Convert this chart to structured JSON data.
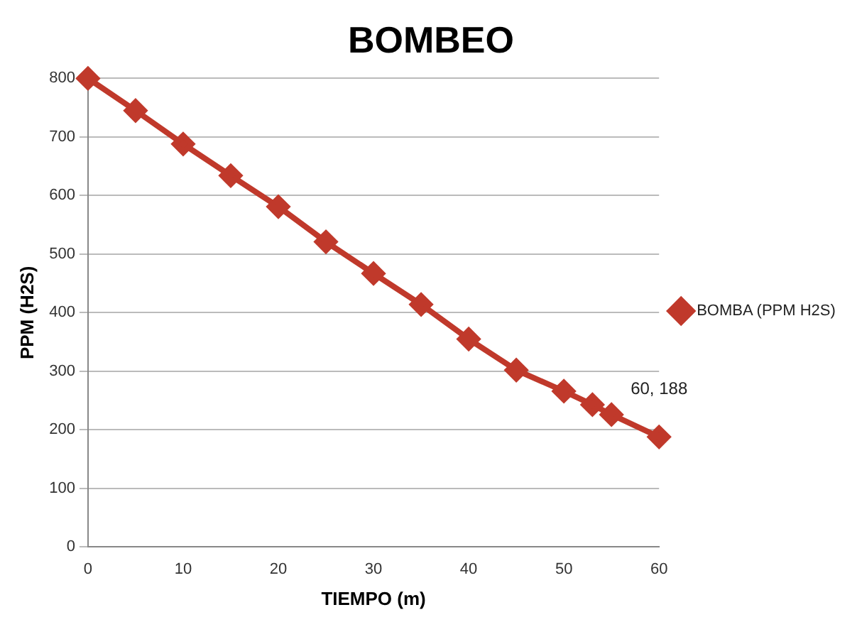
{
  "chart_data": {
    "type": "line",
    "title": "BOMBEO",
    "xlabel": "TIEMPO (m)",
    "ylabel": "PPM (H2S)",
    "x": [
      0,
      5,
      10,
      15,
      20,
      25,
      30,
      35,
      40,
      45,
      50,
      53,
      55,
      60
    ],
    "series": [
      {
        "name": "BOMBA (PPM H2S)",
        "color": "#c0392b",
        "values": [
          800,
          745,
          688,
          634,
          581,
          521,
          467,
          414,
          355,
          302,
          266,
          243,
          226,
          188
        ]
      }
    ],
    "xlim": [
      0,
      60
    ],
    "xticks": [
      0,
      10,
      20,
      30,
      40,
      50,
      60
    ],
    "ylim": [
      0,
      800
    ],
    "yticks": [
      0,
      100,
      200,
      300,
      400,
      500,
      600,
      700,
      800
    ],
    "grid": "y",
    "legend": "right",
    "marker": "diamond",
    "line_style": "solid",
    "annotations": [
      {
        "text": "60, 188",
        "x": 60,
        "y": 188
      }
    ]
  }
}
